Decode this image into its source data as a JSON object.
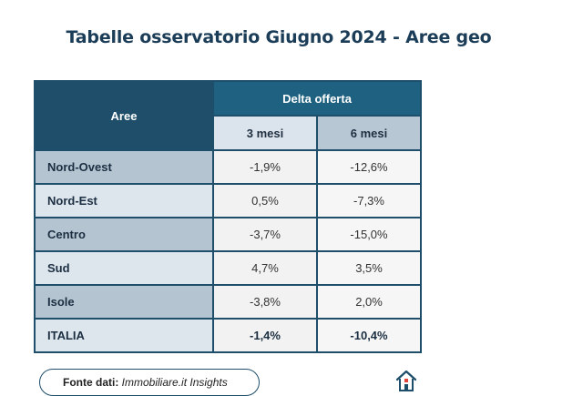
{
  "title": "Tabelle osservatorio Giugno 2024 - Aree geo",
  "table": {
    "header_area": "Aree",
    "header_group": "Delta offerta",
    "header_3m": "3 mesi",
    "header_6m": "6 mesi",
    "rows": [
      {
        "area": "Nord-Ovest",
        "m3": "-1,9%",
        "m6": "-12,6%"
      },
      {
        "area": "Nord-Est",
        "m3": "0,5%",
        "m6": "-7,3%"
      },
      {
        "area": "Centro",
        "m3": "-3,7%",
        "m6": "-15,0%"
      },
      {
        "area": "Sud",
        "m3": "4,7%",
        "m6": "3,5%"
      },
      {
        "area": "Isole",
        "m3": "-3,8%",
        "m6": "2,0%"
      },
      {
        "area": "ITALIA",
        "m3": "-1,4%",
        "m6": "-10,4%"
      }
    ]
  },
  "source": {
    "label": "Fonte dati:",
    "value": "Immobiliare.it Insights"
  },
  "logo": {
    "icon": "house-logo-icon"
  },
  "colors": {
    "title": "#1c3d58",
    "header_dark": "#1f4e6b",
    "header_mid": "#1f6180",
    "logo_red": "#e0443c"
  }
}
